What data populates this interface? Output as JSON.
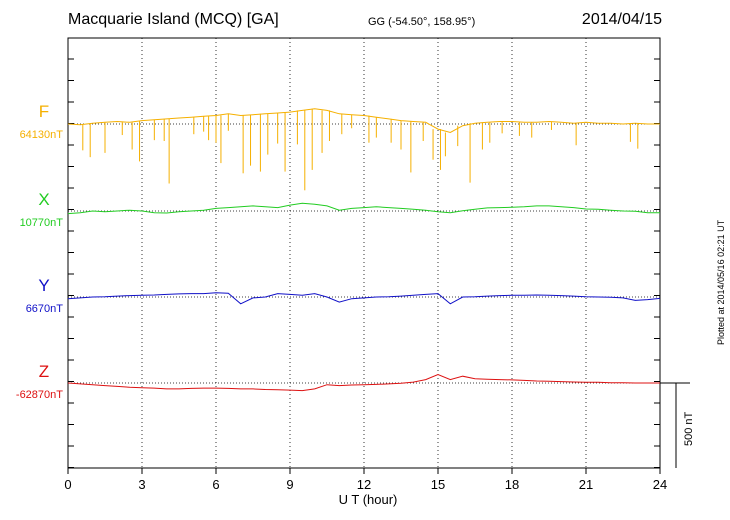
{
  "header": {
    "station": "Macquarie Island (MCQ)  [GA]",
    "coords": "GG (-54.50°, 158.95°)",
    "date": "2014/04/15"
  },
  "footer": {
    "plotted": "Plotted at 2014/05/16 02:21  UT"
  },
  "colors": {
    "F": "#f5b000",
    "X": "#22cc22",
    "Y": "#1010c8",
    "Z": "#dd1111"
  },
  "chart_data": {
    "type": "line",
    "xlabel": "U T (hour)",
    "xlim": [
      0,
      24
    ],
    "xticks": [
      "0",
      "3",
      "6",
      "9",
      "12",
      "15",
      "18",
      "21",
      "24"
    ],
    "scale_label": "500 nT",
    "scale_nT": 500,
    "units": "nT",
    "series": [
      {
        "name": "F",
        "baseline_label": "64130nT",
        "baseline": 64130,
        "x": [
          0.0,
          0.5,
          1.0,
          1.5,
          2.0,
          2.5,
          3.0,
          3.5,
          4.0,
          4.5,
          5.0,
          5.5,
          6.0,
          6.5,
          7.0,
          7.5,
          8.0,
          8.5,
          9.0,
          9.5,
          10.0,
          10.5,
          11.0,
          11.5,
          12.0,
          12.5,
          13.0,
          13.5,
          14.0,
          14.5,
          15.0,
          15.5,
          16.0,
          16.5,
          17.0,
          17.5,
          18.0,
          18.5,
          19.0,
          19.5,
          20.0,
          20.5,
          21.0,
          21.5,
          22.0,
          22.5,
          23.0,
          23.5,
          24.0
        ],
        "y": [
          64130,
          64125,
          64135,
          64140,
          64145,
          64140,
          64150,
          64155,
          64160,
          64165,
          64170,
          64175,
          64180,
          64190,
          64180,
          64185,
          64190,
          64195,
          64200,
          64210,
          64220,
          64210,
          64190,
          64185,
          64180,
          64170,
          64160,
          64150,
          64145,
          64140,
          64100,
          64080,
          64120,
          64135,
          64140,
          64145,
          64145,
          64140,
          64140,
          64145,
          64140,
          64135,
          64140,
          64135,
          64135,
          64130,
          64135,
          64130,
          64130
        ],
        "spikes": [
          {
            "t": 0.6,
            "depth": 150
          },
          {
            "t": 0.9,
            "depth": 200
          },
          {
            "t": 1.5,
            "depth": 180
          },
          {
            "t": 2.2,
            "depth": 80
          },
          {
            "t": 2.6,
            "depth": 160
          },
          {
            "t": 2.9,
            "depth": 240
          },
          {
            "t": 3.5,
            "depth": 120
          },
          {
            "t": 3.9,
            "depth": 130
          },
          {
            "t": 4.1,
            "depth": 380
          },
          {
            "t": 5.1,
            "depth": 100
          },
          {
            "t": 5.5,
            "depth": 90
          },
          {
            "t": 5.7,
            "depth": 140
          },
          {
            "t": 6.0,
            "depth": 160
          },
          {
            "t": 6.2,
            "depth": 280
          },
          {
            "t": 6.5,
            "depth": 100
          },
          {
            "t": 7.1,
            "depth": 340
          },
          {
            "t": 7.4,
            "depth": 300
          },
          {
            "t": 7.8,
            "depth": 340
          },
          {
            "t": 8.1,
            "depth": 240
          },
          {
            "t": 8.5,
            "depth": 180
          },
          {
            "t": 8.8,
            "depth": 350
          },
          {
            "t": 9.3,
            "depth": 200
          },
          {
            "t": 9.6,
            "depth": 470
          },
          {
            "t": 9.9,
            "depth": 360
          },
          {
            "t": 10.3,
            "depth": 250
          },
          {
            "t": 10.6,
            "depth": 180
          },
          {
            "t": 11.1,
            "depth": 120
          },
          {
            "t": 11.5,
            "depth": 80
          },
          {
            "t": 12.2,
            "depth": 160
          },
          {
            "t": 12.5,
            "depth": 120
          },
          {
            "t": 13.1,
            "depth": 140
          },
          {
            "t": 13.5,
            "depth": 170
          },
          {
            "t": 13.9,
            "depth": 300
          },
          {
            "t": 14.4,
            "depth": 110
          },
          {
            "t": 14.8,
            "depth": 180
          },
          {
            "t": 15.1,
            "depth": 240
          },
          {
            "t": 15.3,
            "depth": 140
          },
          {
            "t": 15.8,
            "depth": 120
          },
          {
            "t": 16.3,
            "depth": 350
          },
          {
            "t": 16.8,
            "depth": 160
          },
          {
            "t": 17.1,
            "depth": 120
          },
          {
            "t": 17.6,
            "depth": 70
          },
          {
            "t": 18.3,
            "depth": 80
          },
          {
            "t": 18.8,
            "depth": 90
          },
          {
            "t": 19.6,
            "depth": 50
          },
          {
            "t": 20.6,
            "depth": 130
          },
          {
            "t": 22.8,
            "depth": 110
          },
          {
            "t": 23.1,
            "depth": 150
          }
        ]
      },
      {
        "name": "X",
        "baseline_label": "10770nT",
        "baseline": 10770,
        "x": [
          0.0,
          0.5,
          1.0,
          1.5,
          2.0,
          2.5,
          3.0,
          3.5,
          4.0,
          4.5,
          5.0,
          5.5,
          6.0,
          6.5,
          7.0,
          7.5,
          8.0,
          8.5,
          9.0,
          9.5,
          10.0,
          10.5,
          11.0,
          11.5,
          12.0,
          12.5,
          13.0,
          13.5,
          14.0,
          14.5,
          15.0,
          15.5,
          16.0,
          16.5,
          17.0,
          17.5,
          18.0,
          18.5,
          19.0,
          19.5,
          20.0,
          20.5,
          21.0,
          21.5,
          22.0,
          22.5,
          23.0,
          23.5,
          24.0
        ],
        "y": [
          10755,
          10760,
          10770,
          10765,
          10770,
          10775,
          10770,
          10760,
          10758,
          10765,
          10770,
          10775,
          10785,
          10790,
          10795,
          10800,
          10795,
          10790,
          10805,
          10815,
          10810,
          10800,
          10775,
          10785,
          10790,
          10795,
          10790,
          10785,
          10780,
          10775,
          10765,
          10760,
          10772,
          10780,
          10788,
          10790,
          10792,
          10795,
          10800,
          10800,
          10795,
          10790,
          10782,
          10780,
          10775,
          10770,
          10768,
          10760,
          10760
        ]
      },
      {
        "name": "Y",
        "baseline_label": "6670nT",
        "baseline": 6670,
        "x": [
          0.0,
          0.5,
          1.0,
          1.5,
          2.0,
          2.5,
          3.0,
          3.5,
          4.0,
          4.5,
          5.0,
          5.5,
          6.0,
          6.5,
          7.0,
          7.5,
          8.0,
          8.5,
          9.0,
          9.5,
          10.0,
          10.5,
          11.0,
          11.5,
          12.0,
          12.5,
          13.0,
          13.5,
          14.0,
          14.5,
          15.0,
          15.5,
          16.0,
          16.5,
          17.0,
          17.5,
          18.0,
          18.5,
          19.0,
          19.5,
          20.0,
          20.5,
          21.0,
          21.5,
          22.0,
          22.5,
          23.0,
          23.5,
          24.0
        ],
        "y": [
          6660,
          6665,
          6670,
          6672,
          6675,
          6678,
          6680,
          6682,
          6685,
          6688,
          6690,
          6690,
          6695,
          6692,
          6630,
          6665,
          6670,
          6690,
          6685,
          6680,
          6690,
          6670,
          6640,
          6660,
          6665,
          6670,
          6672,
          6675,
          6680,
          6685,
          6690,
          6630,
          6670,
          6672,
          6675,
          6678,
          6680,
          6680,
          6682,
          6680,
          6678,
          6675,
          6672,
          6670,
          6668,
          6665,
          6650,
          6655,
          6662
        ]
      },
      {
        "name": "Z",
        "baseline_label": "-62870nT",
        "baseline": -62870,
        "x": [
          0.0,
          0.5,
          1.0,
          1.5,
          2.0,
          2.5,
          3.0,
          3.5,
          4.0,
          4.5,
          5.0,
          5.5,
          6.0,
          6.5,
          7.0,
          7.5,
          8.0,
          8.5,
          9.0,
          9.5,
          10.0,
          10.5,
          11.0,
          11.5,
          12.0,
          12.5,
          13.0,
          13.5,
          14.0,
          14.5,
          15.0,
          15.5,
          16.0,
          16.5,
          17.0,
          17.5,
          18.0,
          18.5,
          19.0,
          19.5,
          20.0,
          20.5,
          21.0,
          21.5,
          22.0,
          22.5,
          23.0,
          23.5,
          24.0
        ],
        "y": [
          -62870,
          -62875,
          -62880,
          -62885,
          -62890,
          -62895,
          -62898,
          -62900,
          -62905,
          -62905,
          -62902,
          -62900,
          -62900,
          -62902,
          -62905,
          -62905,
          -62908,
          -62910,
          -62912,
          -62915,
          -62905,
          -62880,
          -62885,
          -62882,
          -62880,
          -62878,
          -62875,
          -62872,
          -62865,
          -62850,
          -62820,
          -62850,
          -62830,
          -62845,
          -62848,
          -62850,
          -62852,
          -62855,
          -62858,
          -62860,
          -62862,
          -62864,
          -62866,
          -62866,
          -62868,
          -62868,
          -62870,
          -62870,
          -62870
        ]
      }
    ]
  }
}
